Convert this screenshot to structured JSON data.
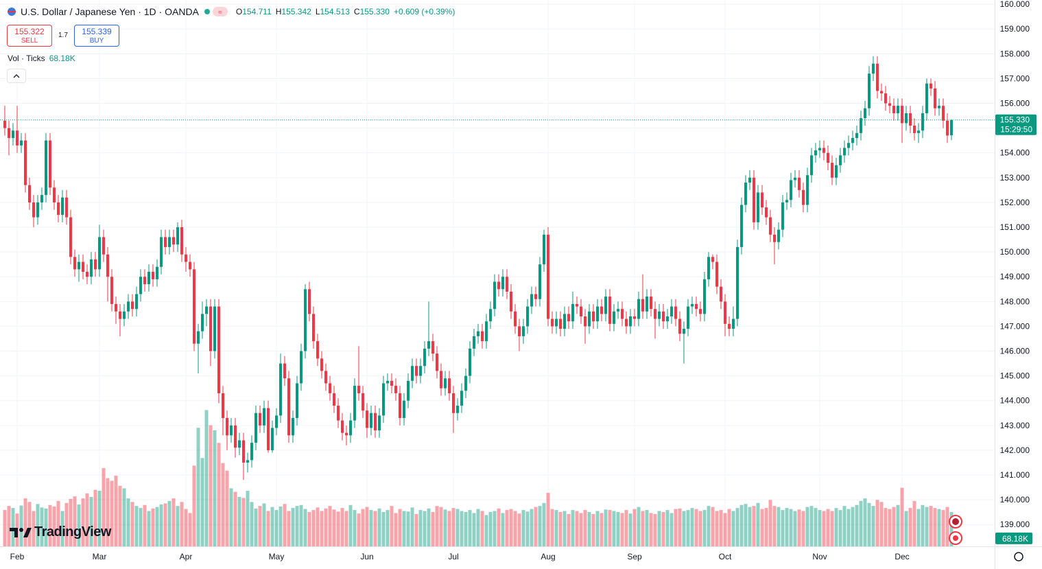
{
  "header": {
    "symbol": "U.S. Dollar / Japanese Yen · 1D · OANDA",
    "ohlc": [
      {
        "key": "O",
        "value": "154.711"
      },
      {
        "key": "H",
        "value": "155.342"
      },
      {
        "key": "L",
        "value": "154.513"
      },
      {
        "key": "C",
        "value": "155.330"
      }
    ],
    "change": "+0.609 (+0.39%)",
    "sell": {
      "price": "155.322",
      "label": "SELL"
    },
    "spread": "1.7",
    "buy": {
      "price": "155.339",
      "label": "BUY"
    },
    "volume_indicator": {
      "label": "Vol · Ticks",
      "value": "68.18K"
    },
    "brand": "TradingView"
  },
  "chart_data": {
    "type": "candlestick",
    "up_color": "#089981",
    "down_color": "#f23645",
    "ylim": [
      138.12,
      160.17
    ],
    "yticks": [
      {
        "value": 139,
        "label": "139.000"
      },
      {
        "value": 140,
        "label": "140.000"
      },
      {
        "value": 141,
        "label": "141.000"
      },
      {
        "value": 142,
        "label": "142.000"
      },
      {
        "value": 143,
        "label": "143.000"
      },
      {
        "value": 144,
        "label": "144.000"
      },
      {
        "value": 145,
        "label": "145.000"
      },
      {
        "value": 146,
        "label": "146.000"
      },
      {
        "value": 147,
        "label": "147.000"
      },
      {
        "value": 148,
        "label": "148.000"
      },
      {
        "value": 149,
        "label": "149.000"
      },
      {
        "value": 150,
        "label": "150.000"
      },
      {
        "value": 151,
        "label": "151.000"
      },
      {
        "value": 152,
        "label": "152.000"
      },
      {
        "value": 153,
        "label": "153.000"
      },
      {
        "value": 154,
        "label": "154.000"
      },
      {
        "value": 155,
        "label": "155.000"
      },
      {
        "value": 156,
        "label": "156.000"
      },
      {
        "value": 157,
        "label": "157.000"
      },
      {
        "value": 158,
        "label": "158.000"
      },
      {
        "value": 159,
        "label": "159.000"
      },
      {
        "value": 160,
        "label": "160.000"
      }
    ],
    "xticks": [
      {
        "value": 3,
        "label": "Feb"
      },
      {
        "value": 23,
        "label": "Mar"
      },
      {
        "value": 44,
        "label": "Apr"
      },
      {
        "value": 66,
        "label": "May"
      },
      {
        "value": 88,
        "label": "Jun"
      },
      {
        "value": 109,
        "label": "Jul"
      },
      {
        "value": 132,
        "label": "Aug"
      },
      {
        "value": 153,
        "label": "Sep"
      },
      {
        "value": 175,
        "label": "Oct"
      },
      {
        "value": 198,
        "label": "Nov"
      },
      {
        "value": 218,
        "label": "Dec"
      }
    ],
    "grid": true,
    "last_price_label": "155.330",
    "countdown": "15:29:50",
    "last_volume_label": "68.18K",
    "open": [
      155.3,
      155.0,
      154.6,
      154.9,
      154.3,
      154.5,
      152.7,
      152.0,
      151.4,
      152.0,
      152.3,
      154.5,
      152.6,
      152.0,
      151.5,
      152.2,
      151.4,
      149.8,
      149.3,
      149.6,
      149.2,
      149.0,
      149.7,
      149.3,
      150.6,
      149.9,
      149.0,
      147.9,
      147.6,
      147.3,
      147.6,
      148.0,
      147.7,
      148.3,
      149.0,
      148.7,
      149.2,
      148.9,
      149.4,
      150.6,
      150.2,
      150.6,
      150.3,
      151.0,
      149.9,
      149.6,
      149.3,
      146.3,
      146.8,
      147.5,
      147.8,
      146.0,
      147.8,
      144.3,
      143.3,
      142.6,
      143.0,
      142.1,
      142.4,
      141.5,
      141.6,
      142.3,
      143.5,
      143.0,
      143.7,
      142.0,
      142.9,
      143.4,
      145.5,
      144.9,
      142.6,
      143.3,
      144.7,
      146.0,
      148.5,
      147.5,
      146.4,
      145.7,
      145.2,
      144.7,
      144.3,
      143.8,
      143.2,
      142.7,
      142.6,
      143.2,
      144.6,
      144.3,
      143.6,
      142.9,
      143.5,
      142.8,
      143.4,
      144.7,
      144.8,
      144.6,
      144.3,
      143.3,
      144.0,
      144.8,
      145.4,
      145.0,
      145.4,
      146.1,
      146.4,
      145.9,
      145.2,
      144.5,
      144.9,
      144.3,
      143.5,
      143.8,
      144.4,
      145.0,
      146.1,
      146.6,
      146.8,
      146.4,
      147.2,
      147.7,
      148.8,
      148.5,
      149.0,
      148.4,
      147.6,
      147.0,
      146.6,
      147.0,
      147.8,
      148.3,
      148.1,
      149.5,
      150.7,
      147.3,
      147.0,
      147.3,
      146.9,
      147.5,
      147.2,
      147.9,
      147.8,
      147.4,
      147.0,
      147.6,
      147.2,
      147.8,
      147.5,
      148.2,
      147.1,
      147.6,
      147.7,
      147.3,
      147.0,
      147.4,
      147.3,
      148.1,
      147.6,
      148.2,
      147.7,
      147.3,
      147.6,
      147.2,
      147.4,
      147.8,
      147.3,
      146.7,
      146.9,
      147.8,
      147.9,
      147.7,
      147.5,
      148.9,
      149.8,
      149.6,
      148.6,
      148.0,
      147.1,
      146.9,
      147.3,
      150.2,
      151.9,
      152.8,
      153.0,
      151.2,
      152.4,
      151.8,
      151.4,
      150.7,
      150.4,
      150.9,
      152.0,
      152.1,
      152.9,
      153.0,
      152.5,
      151.9,
      153.1,
      153.9,
      154.1,
      154.2,
      154.0,
      153.6,
      153.0,
      153.5,
      153.9,
      154.2,
      154.4,
      154.6,
      154.8,
      155.4,
      155.8,
      157.2,
      157.6,
      156.5,
      156.4,
      156.0,
      155.9,
      155.6,
      155.9,
      155.2,
      155.6,
      155.1,
      154.8,
      154.9,
      155.6,
      156.8,
      156.6,
      155.8,
      155.9,
      155.3,
      154.711
    ],
    "high": [
      155.9,
      155.3,
      155.2,
      155.9,
      154.8,
      154.8,
      153.0,
      152.3,
      152.3,
      152.6,
      154.8,
      154.8,
      152.9,
      152.3,
      152.5,
      152.5,
      151.7,
      150.1,
      149.9,
      149.9,
      149.5,
      150.0,
      150.0,
      151.1,
      150.9,
      150.2,
      149.3,
      148.2,
      147.9,
      147.9,
      148.3,
      148.3,
      148.6,
      149.3,
      149.3,
      149.5,
      149.5,
      149.7,
      150.9,
      150.9,
      150.9,
      150.9,
      151.2,
      151.3,
      150.2,
      149.9,
      149.6,
      147.1,
      148.0,
      148.1,
      148.1,
      148.1,
      148.1,
      144.6,
      143.6,
      143.3,
      143.3,
      142.7,
      142.7,
      141.9,
      142.6,
      143.8,
      143.8,
      144.0,
      144.0,
      143.2,
      143.7,
      145.9,
      145.8,
      145.2,
      143.6,
      145.0,
      146.3,
      148.7,
      148.8,
      147.8,
      146.7,
      146.0,
      145.5,
      145.0,
      144.6,
      144.1,
      143.5,
      143.0,
      143.5,
      144.9,
      146.2,
      144.6,
      143.9,
      143.8,
      143.8,
      143.7,
      145.0,
      145.1,
      145.1,
      144.9,
      144.6,
      144.3,
      145.1,
      145.7,
      145.7,
      145.7,
      146.4,
      148.0,
      146.7,
      146.2,
      145.5,
      145.2,
      145.2,
      144.6,
      144.1,
      144.7,
      145.3,
      146.4,
      146.9,
      147.1,
      147.1,
      147.5,
      148.0,
      149.1,
      149.1,
      149.3,
      149.3,
      148.7,
      147.9,
      147.3,
      147.3,
      148.1,
      148.6,
      148.6,
      149.8,
      150.9,
      151.0,
      147.6,
      147.6,
      147.6,
      147.8,
      147.8,
      148.4,
      148.2,
      148.1,
      147.7,
      147.9,
      147.9,
      148.1,
      148.1,
      148.5,
      148.5,
      147.9,
      148.0,
      148.0,
      147.6,
      147.7,
      147.7,
      148.4,
      149.1,
      148.5,
      148.5,
      148.0,
      147.9,
      147.9,
      147.7,
      148.1,
      148.1,
      147.6,
      147.2,
      148.1,
      148.2,
      148.2,
      148.0,
      149.2,
      150.0,
      149.9,
      149.9,
      148.9,
      148.3,
      147.4,
      147.8,
      150.5,
      152.2,
      153.1,
      153.3,
      153.3,
      152.7,
      152.7,
      152.1,
      151.7,
      151.0,
      151.2,
      152.3,
      152.4,
      153.2,
      153.3,
      153.3,
      152.8,
      153.4,
      154.2,
      154.4,
      154.5,
      154.5,
      154.3,
      153.9,
      153.8,
      154.2,
      154.5,
      154.7,
      154.9,
      155.1,
      155.7,
      156.1,
      157.5,
      157.9,
      157.9,
      156.8,
      156.7,
      156.3,
      156.2,
      156.2,
      156.2,
      155.9,
      155.9,
      155.4,
      155.2,
      155.9,
      157.0,
      157.0,
      156.9,
      156.2,
      156.2,
      155.6,
      155.342
    ],
    "low": [
      154.7,
      153.9,
      154.3,
      154.0,
      154.0,
      152.4,
      151.7,
      151.0,
      151.1,
      151.7,
      152.0,
      152.3,
      151.7,
      151.2,
      151.2,
      151.1,
      149.5,
      149.0,
      148.8,
      148.9,
      148.7,
      148.7,
      149.0,
      149.0,
      149.6,
      148.0,
      147.6,
      147.1,
      146.6,
      147.0,
      147.3,
      147.4,
      147.4,
      148.0,
      148.4,
      148.4,
      148.6,
      148.6,
      149.1,
      149.9,
      149.9,
      150.0,
      150.0,
      149.6,
      149.2,
      149.0,
      146.0,
      145.1,
      146.5,
      147.0,
      145.4,
      145.7,
      143.9,
      142.6,
      142.0,
      142.3,
      141.7,
      141.8,
      140.8,
      141.1,
      141.3,
      142.0,
      142.7,
      142.7,
      141.9,
      141.9,
      142.6,
      143.1,
      144.6,
      142.3,
      142.3,
      143.0,
      144.4,
      145.7,
      147.2,
      146.1,
      145.4,
      144.9,
      144.4,
      144.0,
      143.5,
      142.9,
      142.4,
      142.2,
      142.3,
      142.9,
      144.0,
      143.3,
      142.5,
      142.6,
      142.5,
      142.5,
      143.1,
      144.4,
      144.3,
      144.0,
      143.0,
      143.0,
      143.7,
      144.5,
      144.7,
      144.7,
      145.1,
      145.8,
      145.6,
      144.9,
      144.2,
      144.2,
      144.0,
      142.7,
      143.2,
      143.5,
      144.1,
      144.7,
      145.8,
      146.3,
      146.1,
      146.1,
      146.9,
      147.4,
      148.2,
      148.2,
      148.1,
      147.3,
      146.7,
      146.0,
      146.3,
      146.7,
      147.5,
      147.8,
      147.8,
      149.2,
      147.0,
      146.7,
      146.7,
      146.6,
      146.6,
      146.9,
      146.9,
      147.5,
      147.1,
      146.3,
      146.7,
      146.9,
      146.9,
      147.2,
      147.2,
      146.8,
      146.8,
      147.3,
      147.0,
      146.7,
      146.7,
      147.0,
      147.0,
      147.3,
      147.3,
      147.4,
      146.5,
      147.0,
      146.9,
      146.9,
      147.1,
      147.0,
      146.4,
      145.5,
      146.6,
      147.5,
      147.4,
      147.2,
      147.2,
      148.6,
      149.3,
      148.3,
      147.7,
      146.6,
      146.6,
      146.6,
      147.0,
      149.9,
      151.6,
      152.5,
      150.9,
      150.9,
      151.5,
      151.1,
      150.4,
      149.5,
      150.1,
      150.6,
      151.7,
      151.8,
      152.6,
      152.2,
      151.6,
      151.6,
      152.8,
      153.6,
      153.8,
      153.7,
      153.3,
      152.7,
      152.7,
      153.2,
      153.6,
      153.9,
      154.1,
      154.3,
      154.5,
      155.1,
      155.5,
      156.9,
      156.2,
      156.1,
      155.7,
      155.6,
      155.3,
      155.3,
      154.4,
      154.9,
      154.8,
      154.5,
      154.4,
      154.6,
      155.3,
      156.3,
      155.5,
      155.5,
      155.0,
      154.4,
      154.513
    ],
    "close": [
      155.0,
      154.6,
      154.9,
      154.3,
      154.5,
      152.7,
      152.0,
      151.4,
      152.0,
      152.3,
      154.5,
      152.6,
      152.0,
      151.5,
      152.2,
      151.4,
      149.8,
      149.3,
      149.6,
      149.2,
      149.0,
      149.7,
      149.3,
      150.6,
      149.9,
      149.0,
      147.9,
      147.6,
      147.3,
      147.6,
      148.0,
      147.7,
      148.3,
      149.0,
      148.7,
      149.2,
      148.9,
      149.4,
      150.6,
      150.2,
      150.6,
      150.3,
      151.0,
      149.9,
      149.6,
      149.3,
      146.3,
      146.8,
      147.5,
      147.8,
      146.0,
      147.8,
      144.3,
      143.3,
      142.6,
      143.0,
      142.1,
      142.4,
      141.5,
      141.6,
      142.3,
      143.5,
      143.0,
      143.7,
      142.0,
      142.9,
      143.4,
      145.5,
      144.9,
      142.6,
      143.3,
      144.7,
      146.0,
      148.5,
      147.5,
      146.4,
      145.7,
      145.2,
      144.7,
      144.3,
      143.8,
      143.2,
      142.7,
      142.6,
      143.2,
      144.6,
      144.3,
      143.6,
      142.9,
      143.5,
      142.8,
      143.4,
      144.7,
      144.8,
      144.6,
      144.3,
      143.3,
      144.0,
      144.8,
      145.4,
      145.0,
      145.4,
      146.1,
      146.4,
      145.9,
      145.2,
      144.5,
      144.9,
      144.3,
      143.5,
      143.8,
      144.4,
      145.0,
      146.1,
      146.6,
      146.8,
      146.4,
      147.2,
      147.7,
      148.8,
      148.5,
      149.0,
      148.4,
      147.6,
      147.0,
      146.6,
      147.0,
      147.8,
      148.3,
      148.1,
      149.5,
      150.7,
      147.3,
      147.0,
      147.3,
      146.9,
      147.5,
      147.2,
      147.9,
      147.8,
      147.4,
      147.0,
      147.6,
      147.2,
      147.8,
      147.5,
      148.2,
      147.1,
      147.6,
      147.7,
      147.3,
      147.0,
      147.4,
      147.3,
      148.1,
      147.6,
      148.2,
      147.7,
      147.3,
      147.6,
      147.2,
      147.4,
      147.8,
      147.3,
      146.7,
      146.9,
      147.8,
      147.9,
      147.7,
      147.5,
      148.9,
      149.8,
      149.6,
      148.6,
      148.0,
      147.1,
      146.9,
      147.3,
      150.2,
      151.9,
      152.8,
      153.0,
      151.2,
      152.4,
      151.8,
      151.4,
      150.7,
      150.4,
      150.9,
      152.0,
      152.1,
      152.9,
      153.0,
      152.5,
      151.9,
      153.1,
      153.9,
      154.1,
      154.2,
      154.0,
      153.6,
      153.0,
      153.5,
      153.9,
      154.2,
      154.4,
      154.6,
      154.8,
      155.4,
      155.8,
      157.2,
      157.6,
      156.5,
      156.4,
      156.0,
      155.9,
      155.6,
      155.9,
      155.2,
      155.6,
      155.1,
      154.8,
      154.9,
      155.6,
      156.8,
      156.6,
      155.8,
      155.9,
      155.3,
      154.7,
      155.33
    ],
    "volume": [
      72000,
      80000,
      76000,
      65000,
      81000,
      95000,
      88000,
      70000,
      84000,
      77000,
      75000,
      82000,
      79000,
      90000,
      70000,
      86000,
      94000,
      99000,
      83000,
      95000,
      105000,
      98000,
      112000,
      110000,
      155000,
      135000,
      130000,
      140000,
      120000,
      115000,
      95000,
      88000,
      80000,
      76000,
      82000,
      70000,
      75000,
      78000,
      83000,
      85000,
      90000,
      95000,
      80000,
      88000,
      74000,
      66000,
      160000,
      235000,
      175000,
      270000,
      240000,
      230000,
      205000,
      165000,
      150000,
      115000,
      108000,
      98000,
      96000,
      110000,
      88000,
      75000,
      80000,
      85000,
      70000,
      78000,
      72000,
      79000,
      84000,
      70000,
      76000,
      80000,
      82000,
      74000,
      68000,
      72000,
      77000,
      70000,
      75000,
      80000,
      73000,
      69000,
      76000,
      70000,
      82000,
      72000,
      65000,
      74000,
      78000,
      72000,
      70000,
      75000,
      68000,
      72000,
      80000,
      66000,
      74000,
      70000,
      69000,
      77000,
      64000,
      72000,
      70000,
      75000,
      68000,
      80000,
      78000,
      73000,
      70000,
      76000,
      74000,
      70000,
      68000,
      72000,
      66000,
      74000,
      70000,
      62000,
      68000,
      70000,
      75000,
      66000,
      72000,
      74000,
      70000,
      65000,
      72000,
      69000,
      74000,
      78000,
      80000,
      86000,
      106000,
      74000,
      72000,
      68000,
      70000,
      64000,
      72000,
      70000,
      66000,
      72000,
      68000,
      64000,
      70000,
      66000,
      73000,
      72000,
      70000,
      68000,
      66000,
      72000,
      65000,
      74000,
      78000,
      70000,
      72000,
      66000,
      64000,
      70000,
      68000,
      72000,
      66000,
      74000,
      75000,
      70000,
      72000,
      76000,
      74000,
      70000,
      72000,
      80000,
      78000,
      70000,
      72000,
      66000,
      74000,
      70000,
      76000,
      82000,
      84000,
      78000,
      80000,
      86000,
      74000,
      76000,
      92000,
      80000,
      78000,
      72000,
      76000,
      74000,
      70000,
      73000,
      70000,
      78000,
      80000,
      76000,
      72000,
      70000,
      74000,
      70000,
      76000,
      72000,
      80000,
      74000,
      78000,
      82000,
      90000,
      95000,
      86000,
      80000,
      92000,
      88000,
      76000,
      74000,
      78000,
      82000,
      116000,
      70000,
      76000,
      90000,
      74000,
      82000,
      78000,
      80000,
      76000,
      74000,
      72000,
      78000,
      68180
    ]
  }
}
